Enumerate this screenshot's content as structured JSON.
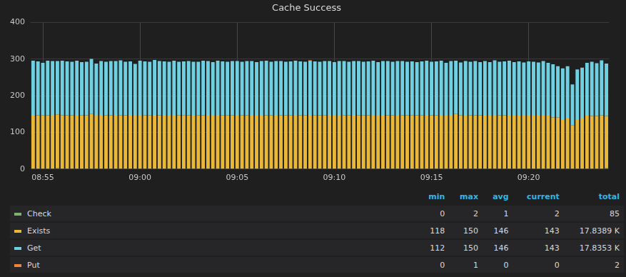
{
  "chart_data": {
    "type": "bar",
    "title": "Cache Success",
    "stacked": true,
    "grid": true,
    "legend": "bottom",
    "categories": [
      null,
      null,
      "08:55",
      null,
      null,
      null,
      null,
      null,
      null,
      null,
      null,
      null,
      null,
      null,
      null,
      null,
      null,
      null,
      null,
      null,
      null,
      null,
      "09:00",
      null,
      null,
      null,
      null,
      null,
      null,
      null,
      null,
      null,
      null,
      null,
      null,
      null,
      null,
      null,
      null,
      null,
      null,
      null,
      "09:05",
      null,
      null,
      null,
      null,
      null,
      null,
      null,
      null,
      null,
      null,
      null,
      null,
      null,
      null,
      null,
      null,
      null,
      null,
      null,
      "09:10",
      null,
      null,
      null,
      null,
      null,
      null,
      null,
      null,
      null,
      null,
      null,
      null,
      null,
      null,
      null,
      null,
      null,
      null,
      null,
      "09:15",
      null,
      null,
      null,
      null,
      null,
      null,
      null,
      null,
      null,
      null,
      null,
      null,
      null,
      null,
      null,
      null,
      null,
      null,
      null,
      "09:20",
      null,
      null,
      null,
      null,
      null,
      null,
      null,
      null,
      null,
      null,
      null,
      null,
      null,
      null,
      null,
      null
    ],
    "ylim": [
      0,
      400
    ],
    "yticks": [
      0,
      100,
      200,
      300,
      400
    ],
    "legend_columns": [
      "min",
      "max",
      "avg",
      "current",
      "total"
    ],
    "series": [
      {
        "name": "Check",
        "color": "#7eb26d",
        "stats": [
          0,
          2,
          1,
          2,
          85
        ],
        "values": [
          1,
          1,
          0,
          1,
          1,
          2,
          1,
          0,
          1,
          1,
          0,
          1,
          1,
          0,
          1,
          0,
          1,
          1,
          0,
          1,
          1,
          0,
          1,
          0,
          1,
          1,
          0,
          1,
          0,
          1,
          0,
          1,
          0,
          1,
          1,
          0,
          1,
          0,
          1,
          0,
          1,
          0,
          1,
          1,
          0,
          1,
          0,
          1,
          0,
          1,
          1,
          0,
          1,
          0,
          1,
          0,
          1,
          1,
          0,
          1,
          0,
          1,
          0,
          1,
          0,
          1,
          1,
          0,
          1,
          0,
          1,
          0,
          1,
          0,
          1,
          1,
          0,
          1,
          0,
          1,
          0,
          1,
          1,
          0,
          1,
          0,
          1,
          0,
          1,
          1,
          0,
          1,
          0,
          1,
          0,
          1,
          1,
          0,
          1,
          0,
          1,
          0,
          1,
          0,
          1,
          1,
          0,
          1,
          0,
          1,
          0,
          1,
          1,
          0,
          1,
          0,
          1,
          1,
          2
        ]
      },
      {
        "name": "Exists",
        "color": "#eab839",
        "stats": [
          118,
          150,
          146,
          143,
          {
            "value": 17838.9,
            "label": "17.8389 K"
          }
        ],
        "values": [
          147,
          146,
          147,
          146,
          147,
          147,
          146,
          147,
          146,
          147,
          147,
          146,
          150,
          146,
          147,
          147,
          146,
          147,
          147,
          146,
          147,
          146,
          147,
          147,
          146,
          147,
          147,
          147,
          146,
          147,
          147,
          146,
          147,
          147,
          146,
          147,
          147,
          146,
          147,
          147,
          146,
          147,
          147,
          146,
          147,
          147,
          146,
          147,
          147,
          146,
          147,
          147,
          146,
          147,
          147,
          147,
          146,
          147,
          147,
          146,
          147,
          147,
          146,
          147,
          147,
          146,
          147,
          147,
          146,
          147,
          147,
          146,
          147,
          147,
          146,
          147,
          147,
          146,
          147,
          146,
          147,
          147,
          146,
          147,
          147,
          146,
          147,
          150,
          146,
          147,
          147,
          146,
          147,
          147,
          146,
          147,
          146,
          147,
          147,
          146,
          147,
          146,
          147,
          146,
          147,
          147,
          146,
          140,
          141,
          135,
          140,
          118,
          133,
          140,
          147,
          145,
          144,
          146,
          143
        ]
      },
      {
        "name": "Get",
        "color": "#6ed0e0",
        "stats": [
          112,
          150,
          146,
          143,
          {
            "value": 17835.3,
            "label": "17.8353 K"
          }
        ],
        "values": [
          148,
          147,
          143,
          149,
          147,
          146,
          149,
          147,
          146,
          148,
          145,
          146,
          150,
          142,
          147,
          146,
          148,
          147,
          150,
          146,
          146,
          141,
          148,
          147,
          146,
          150,
          148,
          146,
          147,
          148,
          146,
          147,
          148,
          145,
          146,
          149,
          147,
          146,
          148,
          147,
          146,
          148,
          147,
          146,
          148,
          147,
          146,
          147,
          149,
          146,
          147,
          148,
          146,
          147,
          148,
          147,
          146,
          148,
          147,
          146,
          148,
          147,
          146,
          147,
          148,
          146,
          147,
          148,
          146,
          147,
          148,
          146,
          147,
          148,
          146,
          147,
          148,
          146,
          147,
          145,
          147,
          148,
          146,
          147,
          148,
          144,
          147,
          146,
          144,
          147,
          146,
          148,
          145,
          147,
          146,
          149,
          146,
          147,
          148,
          146,
          146,
          145,
          146,
          147,
          143,
          147,
          144,
          145,
          140,
          139,
          141,
          112,
          138,
          137,
          142,
          148,
          144,
          150,
          143
        ]
      },
      {
        "name": "Put",
        "color": "#ef843c",
        "stats": [
          0,
          1,
          0,
          0,
          2
        ],
        "values": [
          0,
          0,
          0,
          0,
          0,
          0,
          0,
          0,
          0,
          0,
          0,
          0,
          0,
          0,
          0,
          0,
          0,
          0,
          0,
          0,
          0,
          0,
          0,
          0,
          0,
          0,
          0,
          0,
          0,
          0,
          0,
          0,
          0,
          0,
          0,
          0,
          0,
          0,
          0,
          0,
          0,
          0,
          0,
          0,
          0,
          0,
          0,
          0,
          0,
          0,
          0,
          0,
          0,
          0,
          0,
          0,
          0,
          1,
          0,
          0,
          0,
          0,
          0,
          0,
          0,
          0,
          0,
          0,
          0,
          0,
          0,
          0,
          0,
          0,
          0,
          0,
          0,
          0,
          0,
          0,
          0,
          0,
          0,
          0,
          0,
          0,
          0,
          0,
          0,
          0,
          0,
          0,
          0,
          0,
          0,
          0,
          0,
          0,
          0,
          0,
          0,
          0,
          0,
          0,
          0,
          0,
          0,
          0,
          0,
          0,
          0,
          0,
          0,
          0,
          0,
          0,
          0,
          0,
          0
        ]
      }
    ]
  }
}
